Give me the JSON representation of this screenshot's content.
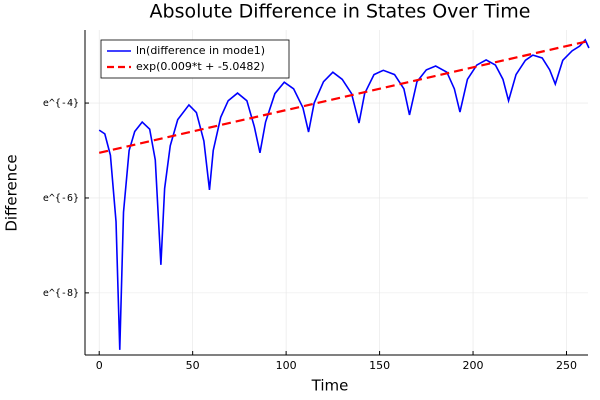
{
  "chart_data": {
    "type": "line",
    "title": "Absolute Difference in States Over Time",
    "xlabel": "Time",
    "ylabel": "Difference",
    "xlim": [
      -7.6,
      261.5
    ],
    "xticks": [
      0,
      50,
      100,
      150,
      200,
      250
    ],
    "ylim": [
      9.06e-05,
      0.0854
    ],
    "yscale": "log",
    "yticks": [
      {
        "value": 0.00033546,
        "label": "e^{-8}"
      },
      {
        "value": 0.00247875,
        "label": "e^{-6}"
      },
      {
        "value": 0.01831564,
        "label": "e^{-4}"
      }
    ],
    "grid": true,
    "legend": "top-left",
    "series": [
      {
        "name": "ln(difference in mode1)",
        "color": "#0000ff",
        "style": "solid",
        "x": [
          0,
          3,
          6,
          9,
          11,
          13,
          16,
          19,
          23,
          27,
          30,
          33,
          35,
          38,
          42,
          48,
          52,
          56,
          59,
          61,
          65,
          69,
          74,
          79,
          83,
          86,
          89,
          94,
          99,
          104,
          109,
          112,
          115,
          120,
          125,
          130,
          135,
          139,
          142,
          147,
          152,
          158,
          163,
          166,
          170,
          175,
          180,
          186,
          190,
          193,
          197,
          202,
          207,
          212,
          216,
          219,
          223,
          228,
          232,
          237,
          241,
          244,
          248,
          253,
          257,
          260,
          262
        ],
        "values": [
          0.01036,
          0.009562,
          0.006097,
          0.001503,
          0.000101,
          0.001836,
          0.006738,
          0.01005,
          0.01228,
          0.01057,
          0.005517,
          0.0006051,
          0.003028,
          0.007447,
          0.01291,
          0.0176,
          0.015,
          0.00823,
          0.002938,
          0.006738,
          0.01357,
          0.01925,
          0.0226,
          0.01925,
          0.01111,
          0.006409,
          0.01228,
          0.02237,
          0.02844,
          0.02472,
          0.01657,
          0.009952,
          0.01832,
          0.02872,
          0.03508,
          0.0302,
          0.02237,
          0.01203,
          0.02237,
          0.03337,
          0.03652,
          0.03337,
          0.02472,
          0.01426,
          0.02872,
          0.03688,
          0.03996,
          0.03508,
          0.02472,
          0.01515,
          0.0302,
          0.04076,
          0.0455,
          0.04076,
          0.0302,
          0.01925,
          0.03337,
          0.04505,
          0.05029,
          0.04736,
          0.03688,
          0.02732,
          0.04505,
          0.05502,
          0.06081,
          0.06925,
          0.05843
        ]
      },
      {
        "name": "exp(0.009*t + -5.0482)",
        "color": "#ff0000",
        "style": "dashed",
        "x": [
          0,
          262
        ],
        "values": [
          0.006421,
          0.06787
        ]
      }
    ]
  }
}
